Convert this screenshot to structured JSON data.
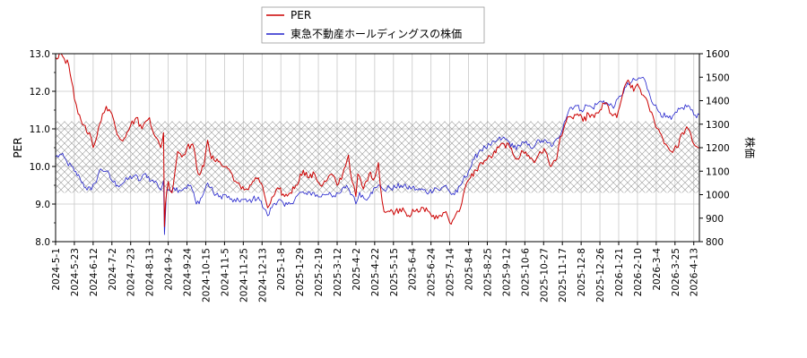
{
  "chart_data": {
    "type": "line",
    "title": "",
    "xlabel": "",
    "ylabel_left": "PER",
    "ylabel_right": "株価",
    "grid": true,
    "legend_position": "top-center",
    "x_ticks": [
      "2024-5-1",
      "2024-5-23",
      "2024-6-12",
      "2024-7-2",
      "2024-7-23",
      "2024-8-13",
      "2024-9-2",
      "2024-9-24",
      "2024-10-15",
      "2024-11-5",
      "2024-11-25",
      "2024-12-13",
      "2025-1-8",
      "2025-1-29",
      "2025-2-19",
      "2025-3-12",
      "2025-4-2",
      "2025-4-22",
      "2025-5-15",
      "2025-6-4",
      "2025-6-24",
      "2025-7-14",
      "2025-8-4",
      "2025-8-25",
      "2025-9-12",
      "2025-10-6",
      "2025-10-27",
      "2025-11-17",
      "2025-12-8",
      "2025-12-26",
      "2026-1-21",
      "2026-2-10",
      "2026-3-4",
      "2026-3-25",
      "2026-4-13"
    ],
    "ylim_left": [
      8.0,
      13.0
    ],
    "y_ticks_left": [
      "8.0",
      "9.0",
      "10.0",
      "11.0",
      "12.0",
      "13.0"
    ],
    "ylim_right": [
      800,
      1600
    ],
    "y_ticks_right": [
      "800",
      "900",
      "1000",
      "1100",
      "1200",
      "1300",
      "1400",
      "1500",
      "1600"
    ],
    "hatch_band_left": [
      9.3,
      11.2
    ],
    "series": [
      {
        "name": "PER",
        "axis": "left",
        "color": "#cc0000",
        "anchors": [
          [
            0,
            12.9
          ],
          [
            0.3,
            13.0
          ],
          [
            0.7,
            12.7
          ],
          [
            1.0,
            11.8
          ],
          [
            1.2,
            11.4
          ],
          [
            1.5,
            11.1
          ],
          [
            1.8,
            10.9
          ],
          [
            2.0,
            10.5
          ],
          [
            2.2,
            10.8
          ],
          [
            2.5,
            11.4
          ],
          [
            2.7,
            11.6
          ],
          [
            3.0,
            11.4
          ],
          [
            3.2,
            11.0
          ],
          [
            3.5,
            10.7
          ],
          [
            3.8,
            10.9
          ],
          [
            4.0,
            11.1
          ],
          [
            4.3,
            11.3
          ],
          [
            4.6,
            11.0
          ],
          [
            4.8,
            11.2
          ],
          [
            5.0,
            11.3
          ],
          [
            5.3,
            10.8
          ],
          [
            5.6,
            10.5
          ],
          [
            5.75,
            10.9
          ],
          [
            5.8,
            8.4
          ],
          [
            5.85,
            9.0
          ],
          [
            6.0,
            9.6
          ],
          [
            6.2,
            9.3
          ],
          [
            6.5,
            10.4
          ],
          [
            6.8,
            10.3
          ],
          [
            7.0,
            10.5
          ],
          [
            7.3,
            10.6
          ],
          [
            7.6,
            9.8
          ],
          [
            7.9,
            10.0
          ],
          [
            8.1,
            10.7
          ],
          [
            8.3,
            10.2
          ],
          [
            8.6,
            10.2
          ],
          [
            8.9,
            10.0
          ],
          [
            9.1,
            10.0
          ],
          [
            9.4,
            9.8
          ],
          [
            9.6,
            9.6
          ],
          [
            9.9,
            9.4
          ],
          [
            10.2,
            9.4
          ],
          [
            10.5,
            9.6
          ],
          [
            10.8,
            9.7
          ],
          [
            11.1,
            9.3
          ],
          [
            11.3,
            8.9
          ],
          [
            11.6,
            9.2
          ],
          [
            11.9,
            9.4
          ],
          [
            12.2,
            9.2
          ],
          [
            12.5,
            9.3
          ],
          [
            12.8,
            9.5
          ],
          [
            13.2,
            9.9
          ],
          [
            13.5,
            9.7
          ],
          [
            13.8,
            9.8
          ],
          [
            14.1,
            9.5
          ],
          [
            14.4,
            9.6
          ],
          [
            14.7,
            9.8
          ],
          [
            15.0,
            9.5
          ],
          [
            15.3,
            9.8
          ],
          [
            15.6,
            10.3
          ],
          [
            15.8,
            9.6
          ],
          [
            16.0,
            9.2
          ],
          [
            16.1,
            9.8
          ],
          [
            16.4,
            9.4
          ],
          [
            16.7,
            9.8
          ],
          [
            17.0,
            9.7
          ],
          [
            17.2,
            10.1
          ],
          [
            17.3,
            9.5
          ],
          [
            17.5,
            8.8
          ],
          [
            17.8,
            8.8
          ],
          [
            18.1,
            8.8
          ],
          [
            18.5,
            8.9
          ],
          [
            18.8,
            8.7
          ],
          [
            19.1,
            8.8
          ],
          [
            19.4,
            8.8
          ],
          [
            19.6,
            8.9
          ],
          [
            19.9,
            8.8
          ],
          [
            20.2,
            8.6
          ],
          [
            20.5,
            8.7
          ],
          [
            20.8,
            8.8
          ],
          [
            21.0,
            8.5
          ],
          [
            21.3,
            8.7
          ],
          [
            21.5,
            8.8
          ],
          [
            21.8,
            9.4
          ],
          [
            22.1,
            9.7
          ],
          [
            22.4,
            9.9
          ],
          [
            22.7,
            10.1
          ],
          [
            23.0,
            10.2
          ],
          [
            23.3,
            10.3
          ],
          [
            23.6,
            10.5
          ],
          [
            23.9,
            10.6
          ],
          [
            24.2,
            10.5
          ],
          [
            24.6,
            10.2
          ],
          [
            24.9,
            10.4
          ],
          [
            25.2,
            10.3
          ],
          [
            25.5,
            10.1
          ],
          [
            25.8,
            10.4
          ],
          [
            26.1,
            10.4
          ],
          [
            26.4,
            10.0
          ],
          [
            26.7,
            10.2
          ],
          [
            26.9,
            10.8
          ],
          [
            27.2,
            11.2
          ],
          [
            27.5,
            11.3
          ],
          [
            27.8,
            11.4
          ],
          [
            28.1,
            11.2
          ],
          [
            28.4,
            11.4
          ],
          [
            28.7,
            11.3
          ],
          [
            29.0,
            11.5
          ],
          [
            29.3,
            11.7
          ],
          [
            29.6,
            11.4
          ],
          [
            29.9,
            11.3
          ],
          [
            30.2,
            11.9
          ],
          [
            30.5,
            12.3
          ],
          [
            30.8,
            12.0
          ],
          [
            31.0,
            12.2
          ],
          [
            31.3,
            11.9
          ],
          [
            31.6,
            11.6
          ],
          [
            31.9,
            11.2
          ],
          [
            32.2,
            10.9
          ],
          [
            32.5,
            10.6
          ],
          [
            32.8,
            10.4
          ],
          [
            33.1,
            10.5
          ],
          [
            33.4,
            10.9
          ],
          [
            33.7,
            11.0
          ],
          [
            34.0,
            10.6
          ],
          [
            34.3,
            10.5
          ]
        ]
      },
      {
        "name": "東急不動産ホールディングスの株価",
        "axis": "right",
        "color": "#2222cc",
        "anchors": [
          [
            0,
            1160
          ],
          [
            0.3,
            1170
          ],
          [
            0.6,
            1140
          ],
          [
            1.0,
            1100
          ],
          [
            1.3,
            1070
          ],
          [
            1.6,
            1030
          ],
          [
            1.9,
            1020
          ],
          [
            2.1,
            1050
          ],
          [
            2.4,
            1110
          ],
          [
            2.7,
            1100
          ],
          [
            3.0,
            1060
          ],
          [
            3.3,
            1040
          ],
          [
            3.6,
            1050
          ],
          [
            3.9,
            1070
          ],
          [
            4.2,
            1080
          ],
          [
            4.5,
            1060
          ],
          [
            4.8,
            1090
          ],
          [
            5.1,
            1060
          ],
          [
            5.4,
            1050
          ],
          [
            5.6,
            1020
          ],
          [
            5.75,
            1060
          ],
          [
            5.8,
            830
          ],
          [
            5.9,
            1000
          ],
          [
            6.0,
            1020
          ],
          [
            6.3,
            1030
          ],
          [
            6.6,
            1020
          ],
          [
            6.9,
            1030
          ],
          [
            7.2,
            1040
          ],
          [
            7.5,
            960
          ],
          [
            7.8,
            990
          ],
          [
            8.1,
            1050
          ],
          [
            8.4,
            1010
          ],
          [
            8.7,
            990
          ],
          [
            9.0,
            1000
          ],
          [
            9.3,
            980
          ],
          [
            9.6,
            970
          ],
          [
            9.9,
            980
          ],
          [
            10.2,
            970
          ],
          [
            10.5,
            980
          ],
          [
            10.8,
            990
          ],
          [
            11.1,
            940
          ],
          [
            11.3,
            910
          ],
          [
            11.6,
            960
          ],
          [
            11.9,
            980
          ],
          [
            12.2,
            950
          ],
          [
            12.5,
            960
          ],
          [
            12.8,
            990
          ],
          [
            13.1,
            1010
          ],
          [
            13.4,
            1000
          ],
          [
            13.7,
            1010
          ],
          [
            14.0,
            990
          ],
          [
            14.3,
            1000
          ],
          [
            14.6,
            1010
          ],
          [
            14.9,
            990
          ],
          [
            15.2,
            1010
          ],
          [
            15.5,
            1040
          ],
          [
            15.8,
            1000
          ],
          [
            16.0,
            960
          ],
          [
            16.2,
            1010
          ],
          [
            16.5,
            980
          ],
          [
            16.8,
            1010
          ],
          [
            17.1,
            1030
          ],
          [
            17.3,
            1040
          ],
          [
            17.5,
            1020
          ],
          [
            17.8,
            1030
          ],
          [
            18.1,
            1030
          ],
          [
            18.4,
            1040
          ],
          [
            18.7,
            1030
          ],
          [
            19.0,
            1030
          ],
          [
            19.3,
            1020
          ],
          [
            19.6,
            1020
          ],
          [
            19.9,
            1010
          ],
          [
            20.2,
            1030
          ],
          [
            20.5,
            1020
          ],
          [
            20.8,
            1040
          ],
          [
            21.1,
            1000
          ],
          [
            21.4,
            1010
          ],
          [
            21.7,
            1060
          ],
          [
            22.0,
            1100
          ],
          [
            22.3,
            1150
          ],
          [
            22.6,
            1190
          ],
          [
            22.9,
            1200
          ],
          [
            23.2,
            1210
          ],
          [
            23.5,
            1230
          ],
          [
            23.8,
            1240
          ],
          [
            24.1,
            1230
          ],
          [
            24.4,
            1200
          ],
          [
            24.7,
            1210
          ],
          [
            25.0,
            1220
          ],
          [
            25.3,
            1200
          ],
          [
            25.6,
            1220
          ],
          [
            25.9,
            1230
          ],
          [
            26.2,
            1220
          ],
          [
            26.5,
            1210
          ],
          [
            26.8,
            1240
          ],
          [
            27.1,
            1310
          ],
          [
            27.4,
            1370
          ],
          [
            27.7,
            1380
          ],
          [
            28.0,
            1360
          ],
          [
            28.3,
            1380
          ],
          [
            28.6,
            1370
          ],
          [
            28.9,
            1390
          ],
          [
            29.2,
            1400
          ],
          [
            29.5,
            1380
          ],
          [
            29.8,
            1380
          ],
          [
            30.1,
            1420
          ],
          [
            30.4,
            1460
          ],
          [
            30.7,
            1480
          ],
          [
            31.0,
            1490
          ],
          [
            31.3,
            1500
          ],
          [
            31.6,
            1440
          ],
          [
            31.9,
            1380
          ],
          [
            32.2,
            1350
          ],
          [
            32.5,
            1330
          ],
          [
            32.8,
            1320
          ],
          [
            33.1,
            1350
          ],
          [
            33.4,
            1370
          ],
          [
            33.7,
            1380
          ],
          [
            34.0,
            1340
          ],
          [
            34.3,
            1340
          ]
        ]
      }
    ]
  }
}
